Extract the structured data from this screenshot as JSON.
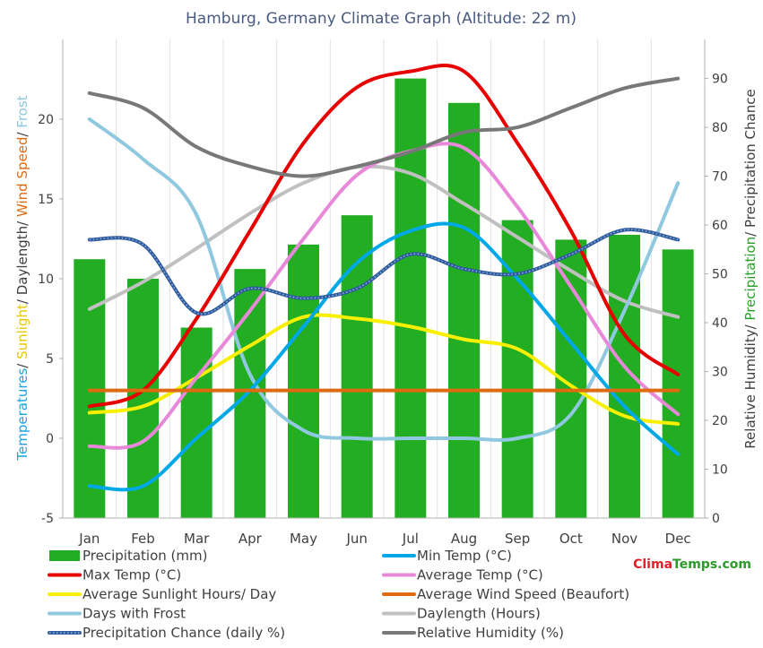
{
  "chart_data": {
    "type": "bar",
    "title": "Hamburg, Germany Climate Graph (Altitude: 22 m)",
    "categories": [
      "Jan",
      "Feb",
      "Mar",
      "Apr",
      "May",
      "Jun",
      "Jul",
      "Aug",
      "Sep",
      "Oct",
      "Nov",
      "Dec"
    ],
    "left_axis": {
      "label_parts": [
        {
          "text": "Temperatures",
          "color": "#1aa3e0"
        },
        {
          "text": "/ ",
          "color": "#404040"
        },
        {
          "text": "Sunlight",
          "color": "#e6c800"
        },
        {
          "text": "/ Daylength",
          "color": "#404040"
        },
        {
          "text": "/ ",
          "color": "#404040"
        },
        {
          "text": "Wind Speed",
          "color": "#e06a10"
        },
        {
          "text": "/ ",
          "color": "#404040"
        },
        {
          "text": "Frost",
          "color": "#8ec8e0"
        }
      ],
      "ylim": [
        -5,
        25
      ],
      "ticks": [
        "-5",
        "0",
        "5",
        "10",
        "15",
        "20"
      ],
      "tick_values": [
        -5,
        0,
        5,
        10,
        15,
        20
      ]
    },
    "right_axis": {
      "label_parts": [
        {
          "text": "Relative Humidity",
          "color": "#404040"
        },
        {
          "text": "/ ",
          "color": "#404040"
        },
        {
          "text": "Precipitation",
          "color": "#2aa02a"
        },
        {
          "text": "/ Precipitation Chance",
          "color": "#404040"
        }
      ],
      "ylim": [
        0,
        98
      ],
      "ticks": [
        "0",
        "10",
        "20",
        "30",
        "40",
        "50",
        "60",
        "70",
        "80",
        "90"
      ],
      "tick_values": [
        0,
        10,
        20,
        30,
        40,
        50,
        60,
        70,
        80,
        90
      ]
    },
    "series": [
      {
        "name": "Precipitation (mm)",
        "kind": "bar",
        "axis": "right",
        "color": "#22ad22",
        "values": [
          53,
          49,
          39,
          51,
          56,
          62,
          90,
          85,
          61,
          57,
          58,
          55
        ]
      },
      {
        "name": "Min Temp (°C)",
        "kind": "line",
        "axis": "left",
        "color": "#00a8e8",
        "values": [
          -3.0,
          -3.0,
          0.0,
          3.0,
          7.0,
          11.0,
          13.0,
          13.2,
          10.0,
          6.0,
          2.0,
          -1.0
        ]
      },
      {
        "name": "Max Temp (°C)",
        "kind": "line",
        "axis": "left",
        "color": "#e60000",
        "values": [
          2.0,
          3.0,
          7.5,
          13.0,
          18.5,
          22.0,
          23.0,
          23.0,
          18.5,
          13.0,
          6.5,
          4.0
        ]
      },
      {
        "name": "Average Temp (°C)",
        "kind": "line",
        "axis": "left",
        "color": "#e888d8",
        "values": [
          -0.5,
          -0.2,
          3.8,
          8.0,
          12.5,
          16.5,
          18.0,
          18.2,
          14.5,
          9.5,
          4.5,
          1.5
        ]
      },
      {
        "name": "Average Sunlight Hours/ Day",
        "kind": "line",
        "axis": "left",
        "color": "#f8f000",
        "values": [
          1.6,
          2.0,
          3.8,
          5.8,
          7.6,
          7.5,
          7.0,
          6.2,
          5.6,
          3.3,
          1.4,
          0.9
        ]
      },
      {
        "name": "Average Wind Speed (Beaufort)",
        "kind": "line",
        "axis": "left",
        "color": "#e06a10",
        "values": [
          3.0,
          3.0,
          3.0,
          3.0,
          3.0,
          3.0,
          3.0,
          3.0,
          3.0,
          3.0,
          3.0,
          3.0
        ]
      },
      {
        "name": "Days with Frost",
        "kind": "line",
        "axis": "left",
        "color": "#90c8e0",
        "values": [
          20.0,
          17.5,
          14.0,
          4.0,
          0.5,
          0.0,
          0.0,
          0.0,
          0.0,
          1.5,
          8.0,
          16.0
        ]
      },
      {
        "name": "Daylength (Hours)",
        "kind": "line",
        "axis": "left",
        "color": "#c0c0c0",
        "values": [
          8.1,
          9.8,
          11.9,
          14.1,
          16.0,
          17.0,
          16.6,
          14.7,
          12.6,
          10.5,
          8.6,
          7.6
        ]
      },
      {
        "name": "Precipitation Chance (daily %)",
        "kind": "line",
        "axis": "right",
        "color": "#2e5c9e",
        "dotted": true,
        "values": [
          57,
          56,
          42,
          47,
          45,
          47,
          54,
          51,
          50,
          54,
          59,
          57
        ]
      },
      {
        "name": "Relative Humidity (%)",
        "kind": "line",
        "axis": "right",
        "color": "#787878",
        "values": [
          87,
          84,
          76,
          72,
          70,
          72,
          75,
          79,
          80,
          84,
          88,
          90
        ]
      }
    ],
    "grid": "vertical",
    "legend_placement": "bottom"
  },
  "brand": {
    "part1": "Clima",
    "part2": "Temps",
    "part3": ".com",
    "color1": "#e0202a",
    "color2": "#2a9a2a"
  }
}
